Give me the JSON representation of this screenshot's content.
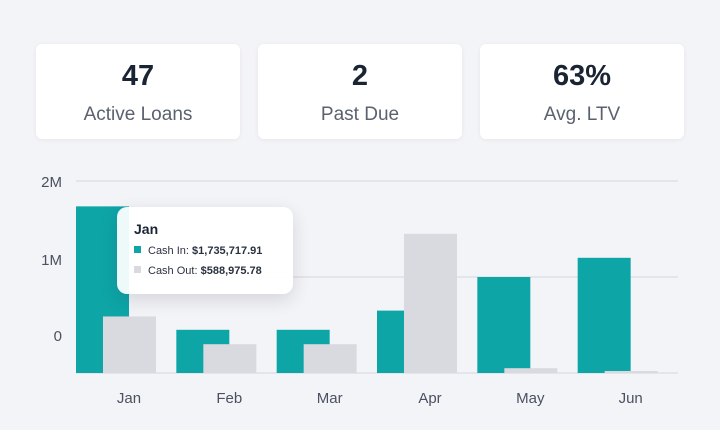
{
  "stats": [
    {
      "value": "47",
      "label": "Active Loans"
    },
    {
      "value": "2",
      "label": "Past Due"
    },
    {
      "value": "63%",
      "label": "Avg. LTV"
    }
  ],
  "colors": {
    "cash_in": "#0ea5a7",
    "cash_out": "#d9d9e0",
    "grid": "#d4d6dc"
  },
  "chart_data": {
    "type": "bar",
    "categories": [
      "Jan",
      "Feb",
      "Mar",
      "Apr",
      "May",
      "Jun"
    ],
    "series": [
      {
        "name": "Cash In",
        "values": [
          1735717.91,
          450000,
          450000,
          650000,
          1000000,
          1200000
        ]
      },
      {
        "name": "Cash Out",
        "values": [
          588975.78,
          300000,
          300000,
          1450000,
          50000,
          10000
        ]
      }
    ],
    "yticks": [
      "2M",
      "1M",
      "0"
    ],
    "grid": true
  },
  "tooltip": {
    "title": "Jan",
    "cash_in_label": "Cash In:",
    "cash_in_value": "$1,735,717.91",
    "cash_out_label": "Cash Out:",
    "cash_out_value": "$588,975.78"
  }
}
